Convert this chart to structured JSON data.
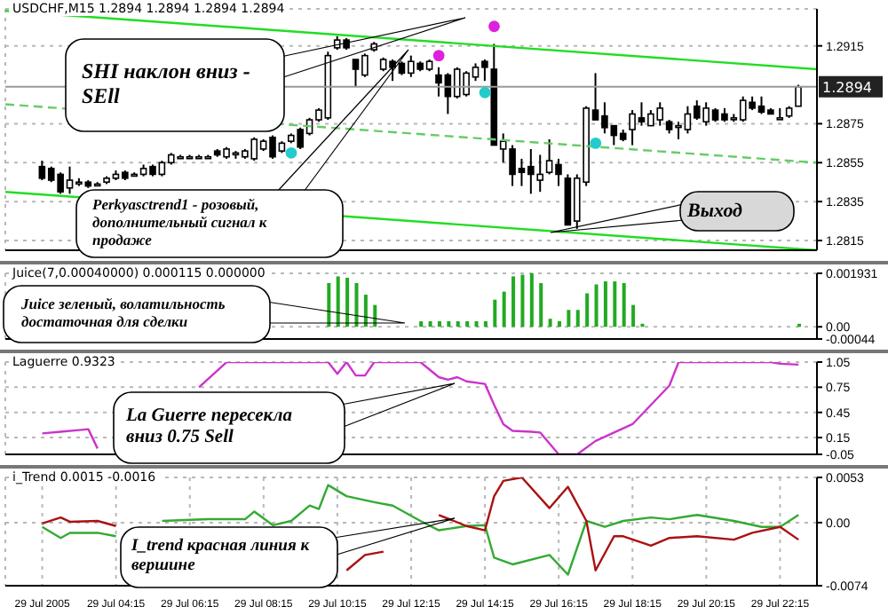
{
  "chart_data": [
    {
      "type": "candlestick",
      "title": "USDCHF,M15 1.2894 1.2894 1.2894 1.2894",
      "x": [
        "2005-07-29T02:15",
        "2005-07-29T02:30",
        "2005-07-29T02:45",
        "2005-07-29T03:00",
        "2005-07-29T03:15",
        "2005-07-29T03:30",
        "2005-07-29T03:45",
        "2005-07-29T04:00",
        "2005-07-29T04:15",
        "2005-07-29T04:30",
        "2005-07-29T04:45",
        "2005-07-29T05:00",
        "2005-07-29T05:15",
        "2005-07-29T05:30",
        "2005-07-29T05:45",
        "2005-07-29T06:00",
        "2005-07-29T06:15",
        "2005-07-29T06:30",
        "2005-07-29T06:45",
        "2005-07-29T07:00",
        "2005-07-29T07:15",
        "2005-07-29T07:30",
        "2005-07-29T07:45",
        "2005-07-29T08:00",
        "2005-07-29T08:15",
        "2005-07-29T08:30",
        "2005-07-29T08:45",
        "2005-07-29T09:00",
        "2005-07-29T09:15",
        "2005-07-29T09:30",
        "2005-07-29T09:45",
        "2005-07-29T10:00",
        "2005-07-29T10:15",
        "2005-07-29T10:30",
        "2005-07-29T10:45",
        "2005-07-29T11:00",
        "2005-07-29T11:15",
        "2005-07-29T11:30",
        "2005-07-29T11:45",
        "2005-07-29T12:00",
        "2005-07-29T12:15",
        "2005-07-29T12:30",
        "2005-07-29T12:45",
        "2005-07-29T13:00",
        "2005-07-29T13:15",
        "2005-07-29T13:30",
        "2005-07-29T13:45",
        "2005-07-29T14:00",
        "2005-07-29T14:15",
        "2005-07-29T14:30",
        "2005-07-29T14:45",
        "2005-07-29T15:00",
        "2005-07-29T15:15",
        "2005-07-29T15:30",
        "2005-07-29T15:45",
        "2005-07-29T16:00",
        "2005-07-29T16:15",
        "2005-07-29T16:30",
        "2005-07-29T16:45",
        "2005-07-29T17:00",
        "2005-07-29T17:15",
        "2005-07-29T17:30",
        "2005-07-29T17:45",
        "2005-07-29T18:00",
        "2005-07-29T18:15",
        "2005-07-29T18:30",
        "2005-07-29T18:45",
        "2005-07-29T19:00",
        "2005-07-29T19:15",
        "2005-07-29T19:30",
        "2005-07-29T19:45",
        "2005-07-29T20:00",
        "2005-07-29T20:15",
        "2005-07-29T20:30",
        "2005-07-29T20:45",
        "2005-07-29T21:00",
        "2005-07-29T21:15",
        "2005-07-29T21:30",
        "2005-07-29T21:45",
        "2005-07-29T22:00",
        "2005-07-29T22:15",
        "2005-07-29T22:30",
        "2005-07-29T22:45"
      ],
      "ohlc": [
        [
          1.2853,
          1.2856,
          1.2846,
          1.2847
        ],
        [
          1.2852,
          1.2853,
          1.2845,
          1.2846
        ],
        [
          1.2849,
          1.285,
          1.2839,
          1.284
        ],
        [
          1.2842,
          1.2853,
          1.2839,
          1.2846
        ],
        [
          1.2845,
          1.2847,
          1.2843,
          1.2845
        ],
        [
          1.2845,
          1.2846,
          1.2842,
          1.2843
        ],
        [
          1.2844,
          1.2845,
          1.2843,
          1.2844
        ],
        [
          1.2845,
          1.2848,
          1.2844,
          1.2847
        ],
        [
          1.2847,
          1.2851,
          1.2846,
          1.2849
        ],
        [
          1.285,
          1.2851,
          1.2846,
          1.2847
        ],
        [
          1.2849,
          1.285,
          1.2848,
          1.2849
        ],
        [
          1.2849,
          1.2854,
          1.2848,
          1.2852
        ],
        [
          1.2853,
          1.2854,
          1.2848,
          1.2849
        ],
        [
          1.2849,
          1.2856,
          1.2848,
          1.2855
        ],
        [
          1.2855,
          1.286,
          1.2854,
          1.2859
        ],
        [
          1.2858,
          1.2859,
          1.2857,
          1.2858
        ],
        [
          1.2858,
          1.2859,
          1.2857,
          1.2858
        ],
        [
          1.2858,
          1.2859,
          1.2857,
          1.2858
        ],
        [
          1.2858,
          1.2859,
          1.2857,
          1.2858
        ],
        [
          1.2861,
          1.2862,
          1.2858,
          1.2859
        ],
        [
          1.2858,
          1.2863,
          1.2857,
          1.2862
        ],
        [
          1.286,
          1.2861,
          1.2857,
          1.286
        ],
        [
          1.2858,
          1.2862,
          1.2857,
          1.2861
        ],
        [
          1.2857,
          1.2868,
          1.2856,
          1.2867
        ],
        [
          1.2862,
          1.2867,
          1.2861,
          1.2866
        ],
        [
          1.2868,
          1.2869,
          1.2857,
          1.2858
        ],
        [
          1.2861,
          1.2866,
          1.286,
          1.2865
        ],
        [
          1.2866,
          1.287,
          1.2865,
          1.2869
        ],
        [
          1.2872,
          1.2873,
          1.2862,
          1.2863
        ],
        [
          1.287,
          1.2878,
          1.2869,
          1.2877
        ],
        [
          1.2877,
          1.2883,
          1.2876,
          1.2882
        ],
        [
          1.2878,
          1.2912,
          1.2877,
          1.291
        ],
        [
          1.2914,
          1.292,
          1.2913,
          1.2918
        ],
        [
          1.2918,
          1.2919,
          1.2913,
          1.2914
        ],
        [
          1.2908,
          1.2908,
          1.2894,
          1.2903
        ],
        [
          1.29,
          1.2911,
          1.2899,
          1.291
        ],
        [
          1.2913,
          1.2917,
          1.2912,
          1.2916
        ],
        [
          1.2903,
          1.2909,
          1.2902,
          1.2908
        ],
        [
          1.2907,
          1.2908,
          1.2897,
          1.2904
        ],
        [
          1.2906,
          1.2907,
          1.29,
          1.2901
        ],
        [
          1.2901,
          1.291,
          1.2899,
          1.2907
        ],
        [
          1.2906,
          1.2907,
          1.2902,
          1.2903
        ],
        [
          1.2903,
          1.2908,
          1.2902,
          1.2907
        ],
        [
          1.29,
          1.2904,
          1.2889,
          1.2896
        ],
        [
          1.29,
          1.2901,
          1.288,
          1.2889
        ],
        [
          1.2889,
          1.2904,
          1.2888,
          1.2903
        ],
        [
          1.289,
          1.2902,
          1.2889,
          1.2901
        ],
        [
          1.2899,
          1.2906,
          1.2897,
          1.2904
        ],
        [
          1.2907,
          1.2908,
          1.2897,
          1.2904
        ],
        [
          1.2903,
          1.2916,
          1.2864,
          1.2864
        ],
        [
          1.2862,
          1.287,
          1.2855,
          1.2866
        ],
        [
          1.2862,
          1.2864,
          1.2843,
          1.2849
        ],
        [
          1.2852,
          1.2857,
          1.2843,
          1.285
        ],
        [
          1.2853,
          1.2862,
          1.2839,
          1.2849
        ],
        [
          1.2846,
          1.2859,
          1.284,
          1.2849
        ],
        [
          1.285,
          1.2867,
          1.2849,
          1.2856
        ],
        [
          1.2854,
          1.2857,
          1.2843,
          1.2849
        ],
        [
          1.2847,
          1.2849,
          1.2823,
          1.2823
        ],
        [
          1.2825,
          1.2849,
          1.2821,
          1.2847
        ],
        [
          1.2845,
          1.2884,
          1.2843,
          1.2883
        ],
        [
          1.2882,
          1.2901,
          1.2877,
          1.2877
        ],
        [
          1.2879,
          1.2886,
          1.287,
          1.2873
        ],
        [
          1.2874,
          1.2874,
          1.2864,
          1.2869
        ],
        [
          1.287,
          1.2872,
          1.2866,
          1.2867
        ],
        [
          1.2872,
          1.2882,
          1.2864,
          1.288
        ],
        [
          1.2878,
          1.2886,
          1.2874,
          1.2876
        ],
        [
          1.2874,
          1.2882,
          1.2874,
          1.288
        ],
        [
          1.2877,
          1.2886,
          1.2874,
          1.2883
        ],
        [
          1.2876,
          1.2877,
          1.287,
          1.2872
        ],
        [
          1.2874,
          1.2876,
          1.2867,
          1.2874
        ],
        [
          1.2872,
          1.2884,
          1.287,
          1.288
        ],
        [
          1.2884,
          1.2887,
          1.2877,
          1.2878
        ],
        [
          1.2876,
          1.2886,
          1.2874,
          1.2883
        ],
        [
          1.2882,
          1.2883,
          1.2876,
          1.2877
        ],
        [
          1.288,
          1.2883,
          1.2876,
          1.2877
        ],
        [
          1.2878,
          1.288,
          1.2876,
          1.2878
        ],
        [
          1.2877,
          1.2889,
          1.2876,
          1.2887
        ],
        [
          1.2886,
          1.2889,
          1.2882,
          1.2883
        ],
        [
          1.2884,
          1.2889,
          1.288,
          1.2881
        ],
        [
          1.2882,
          1.2883,
          1.288,
          1.288
        ],
        [
          1.2878,
          1.2883,
          1.2877,
          1.2878
        ],
        [
          1.2879,
          1.2884,
          1.2878,
          1.2883
        ],
        [
          1.2884,
          1.2895,
          1.2884,
          1.2894
        ]
      ],
      "series": [
        {
          "type": "line",
          "x": [
            "2005-07-29T01:15",
            "2005-07-29T23:15"
          ],
          "values": [
            1.2933,
            1.2903
          ],
          "color": "#22dd22",
          "line_style": "solid"
        },
        {
          "type": "line",
          "x": [
            "2005-07-29T01:15",
            "2005-07-29T23:15"
          ],
          "values": [
            1.2885,
            1.2855
          ],
          "color": "#66cc66",
          "line_style": "dashed"
        },
        {
          "type": "line",
          "x": [
            "2005-07-29T01:15",
            "2005-07-29T23:15"
          ],
          "values": [
            1.284,
            1.281
          ],
          "color": "#22dd22",
          "line_style": "solid"
        },
        {
          "type": "scatter",
          "x": [
            "2005-07-29T13:00",
            "2005-07-29T14:30"
          ],
          "values": [
            1.291,
            1.2925
          ],
          "color": "#dd22dd"
        },
        {
          "type": "scatter",
          "x": [
            "2005-07-29T09:00",
            "2005-07-29T14:15",
            "2005-07-29T17:15"
          ],
          "values": [
            1.286,
            1.2891,
            1.2865
          ],
          "color": "#22cccc"
        }
      ],
      "xlim": [
        "2005-07-29T01:15",
        "2005-07-29T23:15"
      ],
      "xticks": [
        {
          "value": "2005-07-29T02:15",
          "label": null
        },
        {
          "value": "2005-07-29T04:15",
          "label": null
        },
        {
          "value": "2005-07-29T06:15",
          "label": null
        },
        {
          "value": "2005-07-29T08:15",
          "label": null
        },
        {
          "value": "2005-07-29T10:15",
          "label": null
        },
        {
          "value": "2005-07-29T12:15",
          "label": null
        },
        {
          "value": "2005-07-29T14:15",
          "label": null
        },
        {
          "value": "2005-07-29T16:15",
          "label": null
        },
        {
          "value": "2005-07-29T18:15",
          "label": null
        },
        {
          "value": "2005-07-29T20:15",
          "label": null
        },
        {
          "value": "2005-07-29T22:15",
          "label": null
        }
      ],
      "ylim": [
        1.281,
        1.2934
      ],
      "yticks": [
        1.2915,
        1.2875,
        1.2855,
        1.2835,
        1.2815
      ],
      "ref_lines": [
        {
          "axis": "y",
          "value": 1.2894,
          "label": "1.2894",
          "color": "#999999"
        }
      ],
      "grid": true,
      "tick_labels": "y",
      "annotations": [
        "SHI наклон вниз - SEll",
        "Perkyasctrend1 - розовый, дополнительный сигнал к продаже",
        "Выход"
      ]
    },
    {
      "type": "bar",
      "title": "Juice(7,0.00040000) 0.000115 0.000000",
      "x": [
        "2005-07-29T10:00",
        "2005-07-29T10:15",
        "2005-07-29T10:30",
        "2005-07-29T10:45",
        "2005-07-29T11:00",
        "2005-07-29T11:15",
        "2005-07-29T12:30",
        "2005-07-29T12:45",
        "2005-07-29T13:00",
        "2005-07-29T13:15",
        "2005-07-29T13:30",
        "2005-07-29T13:45",
        "2005-07-29T14:00",
        "2005-07-29T14:15",
        "2005-07-29T14:30",
        "2005-07-29T14:45",
        "2005-07-29T15:00",
        "2005-07-29T15:15",
        "2005-07-29T15:30",
        "2005-07-29T15:45",
        "2005-07-29T16:00",
        "2005-07-29T16:15",
        "2005-07-29T16:30",
        "2005-07-29T16:45",
        "2005-07-29T17:00",
        "2005-07-29T17:15",
        "2005-07-29T17:30",
        "2005-07-29T17:45",
        "2005-07-29T18:00",
        "2005-07-29T18:15",
        "2005-07-29T18:30",
        "2005-07-29T22:45"
      ],
      "values": [
        0.00158,
        0.00182,
        0.00177,
        0.00158,
        0.00116,
        0.00079,
        0.0002,
        0.0002,
        0.0002,
        0.0002,
        0.0002,
        0.0002,
        0.0002,
        0.0002,
        0.00098,
        0.00127,
        0.00182,
        0.00188,
        0.00193,
        0.00158,
        0.00029,
        0.0002,
        0.00061,
        0.00061,
        0.00121,
        0.00153,
        0.00164,
        0.00164,
        0.00158,
        0.00079,
        0.00011,
        0.00011
      ],
      "color": "#22aa22",
      "xlim": [
        "2005-07-29T01:15",
        "2005-07-29T23:15"
      ],
      "xticks": [
        {
          "value": "2005-07-29T02:15",
          "label": null
        },
        {
          "value": "2005-07-29T04:15",
          "label": null
        },
        {
          "value": "2005-07-29T06:15",
          "label": null
        },
        {
          "value": "2005-07-29T08:15",
          "label": null
        },
        {
          "value": "2005-07-29T10:15",
          "label": null
        },
        {
          "value": "2005-07-29T12:15",
          "label": null
        },
        {
          "value": "2005-07-29T14:15",
          "label": null
        },
        {
          "value": "2005-07-29T16:15",
          "label": null
        },
        {
          "value": "2005-07-29T18:15",
          "label": null
        },
        {
          "value": "2005-07-29T20:15",
          "label": null
        },
        {
          "value": "2005-07-29T22:15",
          "label": null
        }
      ],
      "ylim": [
        -0.00044,
        0.001931
      ],
      "yticks": [
        0.001931,
        {
          "value": 0,
          "label": "0.00"
        },
        -0.00044
      ],
      "grid": true,
      "tick_labels": "y",
      "annotations": [
        "Juice зеленый, волатильность достаточная для сделки"
      ]
    },
    {
      "type": "line",
      "title": "Laguerre 0.9323",
      "x": [
        "2005-07-29T02:15",
        "2005-07-29T02:45",
        "2005-07-29T03:15",
        "2005-07-29T03:30",
        "2005-07-29T03:45",
        "2005-07-29T05:00",
        "2005-07-29T06:30",
        "2005-07-29T07:15",
        "2005-07-29T10:00",
        "2005-07-29T10:15",
        "2005-07-29T10:30",
        "2005-07-29T10:45",
        "2005-07-29T11:00",
        "2005-07-29T11:15",
        "2005-07-29T12:30",
        "2005-07-29T13:00",
        "2005-07-29T13:15",
        "2005-07-29T13:30",
        "2005-07-29T13:45",
        "2005-07-29T14:15",
        "2005-07-29T14:30",
        "2005-07-29T14:45",
        "2005-07-29T15:00",
        "2005-07-29T15:30",
        "2005-07-29T15:45",
        "2005-07-29T16:15",
        "2005-07-29T16:45",
        "2005-07-29T17:15",
        "2005-07-29T17:45",
        "2005-07-29T18:15",
        "2005-07-29T19:15",
        "2005-07-29T19:30",
        "2005-07-29T22:00",
        "2005-07-29T22:15",
        "2005-07-29T22:45"
      ],
      "values": [
        0.2,
        0.22,
        0.24,
        0.25,
        0.02,
        null,
        0.75,
        1.05,
        1.05,
        0.91,
        1.05,
        0.89,
        0.89,
        1.05,
        1.05,
        0.87,
        0.84,
        0.87,
        0.82,
        0.79,
        0.54,
        0.31,
        0.23,
        0.22,
        0.21,
        -0.05,
        -0.05,
        0.11,
        0.21,
        0.31,
        0.77,
        1.05,
        1.05,
        1.03,
        1.02
      ],
      "color": "#cc33cc",
      "xlim": [
        "2005-07-29T01:15",
        "2005-07-29T23:15"
      ],
      "xticks": [
        {
          "value": "2005-07-29T02:15",
          "label": null
        },
        {
          "value": "2005-07-29T04:15",
          "label": null
        },
        {
          "value": "2005-07-29T06:15",
          "label": null
        },
        {
          "value": "2005-07-29T08:15",
          "label": null
        },
        {
          "value": "2005-07-29T10:15",
          "label": null
        },
        {
          "value": "2005-07-29T12:15",
          "label": null
        },
        {
          "value": "2005-07-29T14:15",
          "label": null
        },
        {
          "value": "2005-07-29T16:15",
          "label": null
        },
        {
          "value": "2005-07-29T18:15",
          "label": null
        },
        {
          "value": "2005-07-29T20:15",
          "label": null
        },
        {
          "value": "2005-07-29T22:15",
          "label": null
        }
      ],
      "ylim": [
        -0.05,
        1.05
      ],
      "yticks": [
        1.05,
        0.75,
        0.45,
        0.15,
        -0.05
      ],
      "grid": true,
      "tick_labels": "y",
      "annotations": [
        "La Guerre пересекла вниз 0.75 Sell"
      ]
    },
    {
      "type": "line",
      "title": "i_Trend 0.0015 -0.0016",
      "series": [
        {
          "x": [
            "2005-07-29T02:15",
            "2005-07-29T02:45",
            "2005-07-29T03:00",
            "2005-07-29T03:45",
            "2005-07-29T04:15",
            "2005-07-29T05:00",
            "2005-07-29T05:30",
            "2005-07-29T06:45",
            "2005-07-29T07:45",
            "2005-07-29T08:00",
            "2005-07-29T08:30",
            "2005-07-29T09:00",
            "2005-07-29T09:30",
            "2005-07-29T09:45",
            "2005-07-29T10:00",
            "2005-07-29T10:30",
            "2005-07-29T11:15",
            "2005-07-29T11:45",
            "2005-07-29T12:30",
            "2005-07-29T13:00",
            "2005-07-29T13:45",
            "2005-07-29T14:15",
            "2005-07-29T14:30",
            "2005-07-29T15:00",
            "2005-07-29T16:00",
            "2005-07-29T16:30",
            "2005-07-29T17:00",
            "2005-07-29T17:30",
            "2005-07-29T18:00",
            "2005-07-29T18:45",
            "2005-07-29T19:15",
            "2005-07-29T20:00",
            "2005-07-29T21:00",
            "2005-07-29T21:45",
            "2005-07-29T22:15",
            "2005-07-29T22:45"
          ],
          "values": [
            -0.0005,
            -0.0018,
            -0.0012,
            -0.0012,
            -0.0016,
            null,
            0.0002,
            0.0004,
            0.0004,
            0.0013,
            -0.0003,
            0.0002,
            0.002,
            0.0016,
            0.0044,
            0.0031,
            0.0024,
            0.002,
            0.0002,
            -0.0009,
            -0.0004,
            -0.0003,
            -0.0041,
            -0.0049,
            -0.0038,
            -0.0061,
            0.0002,
            -0.0005,
            0.0002,
            0.0006,
            0.0004,
            0.0009,
            0.0002,
            -0.0005,
            -0.0005,
            0.0009
          ],
          "color": "#33aa33"
        },
        {
          "x": [
            "2005-07-29T02:15",
            "2005-07-29T02:45",
            "2005-07-29T03:00",
            "2005-07-29T03:45",
            "2005-07-29T04:15",
            "2005-07-29T05:00",
            "2005-07-29T10:30",
            "2005-07-29T11:00",
            "2005-07-29T11:30",
            "2005-07-29T12:00",
            "2005-07-29T13:00",
            "2005-07-29T13:45",
            "2005-07-29T14:15",
            "2005-07-29T14:30",
            "2005-07-29T14:45",
            "2005-07-29T15:15",
            "2005-07-29T16:00",
            "2005-07-29T16:30",
            "2005-07-29T17:00",
            "2005-07-29T17:15",
            "2005-07-29T17:45",
            "2005-07-29T18:00",
            "2005-07-29T18:45",
            "2005-07-29T19:15",
            "2005-07-29T20:00",
            "2005-07-29T21:00",
            "2005-07-29T21:30",
            "2005-07-29T22:15",
            "2005-07-29T22:45"
          ],
          "values": [
            -0.0001,
            0.0006,
            0.0001,
            0.0002,
            -0.0004,
            null,
            -0.0056,
            -0.0038,
            -0.0034,
            null,
            0.0009,
            -0.0004,
            -0.0009,
            0.0031,
            0.0049,
            0.0053,
            0.0017,
            0.0042,
            0.0002,
            -0.0056,
            -0.0016,
            -0.0016,
            -0.0027,
            -0.0018,
            -0.0016,
            -0.002,
            -0.0012,
            -0.0005,
            -0.002
          ],
          "color": "#aa1111"
        }
      ],
      "xlim": [
        "2005-07-29T01:15",
        "2005-07-29T23:15"
      ],
      "xticks": [
        {
          "value": "2005-07-29T02:15",
          "label": "29 Jul 2005"
        },
        {
          "value": "2005-07-29T04:15",
          "label": "29 Jul 04:15"
        },
        {
          "value": "2005-07-29T06:15",
          "label": "29 Jul 06:15"
        },
        {
          "value": "2005-07-29T08:15",
          "label": "29 Jul 08:15"
        },
        {
          "value": "2005-07-29T10:15",
          "label": "29 Jul 10:15"
        },
        {
          "value": "2005-07-29T12:15",
          "label": "29 Jul 12:15"
        },
        {
          "value": "2005-07-29T14:15",
          "label": "29 Jul 14:15"
        },
        {
          "value": "2005-07-29T16:15",
          "label": "29 Jul 16:15"
        },
        {
          "value": "2005-07-29T18:15",
          "label": "29 Jul 18:15"
        },
        {
          "value": "2005-07-29T20:15",
          "label": "29 Jul 20:15"
        },
        {
          "value": "2005-07-29T22:15",
          "label": "29 Jul 22:15"
        }
      ],
      "ylim": [
        -0.0074,
        0.0053
      ],
      "yticks": [
        0.0053,
        {
          "value": 0,
          "label": "0.00"
        },
        -0.0074
      ],
      "grid": true,
      "annotations": [
        "I_trend красная линия к вершине"
      ]
    }
  ]
}
